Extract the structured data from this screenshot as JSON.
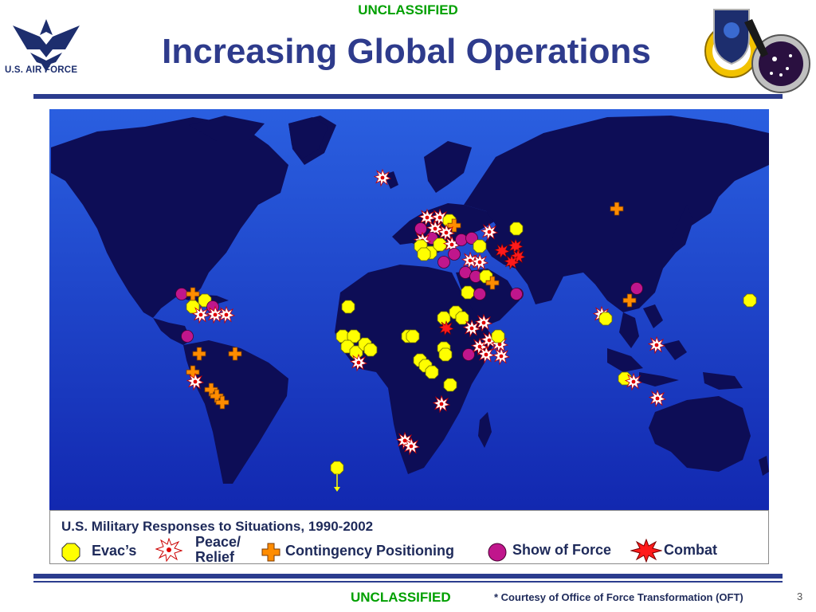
{
  "header": {
    "classification": "UNCLASSIFIED",
    "title": "Increasing Global Operations",
    "logo_text": "U.S. AIR FORCE"
  },
  "map": {
    "ocean_color": "#1a3fc4",
    "land_color": "#0d0d56",
    "legend": {
      "title": "U.S. Military Responses to Situations, 1990-2002",
      "items": [
        {
          "label": "Evac’s",
          "icon": "yellow-octagon-icon",
          "color": "#ffff00"
        },
        {
          "label_line1": "Peace/",
          "label_line2": "Relief",
          "icon": "starburst-icon",
          "color": "#ffffff"
        },
        {
          "label": "Contingency Positioning",
          "icon": "orange-cross-icon",
          "color": "#ff8c00"
        },
        {
          "label": "Show of Force",
          "icon": "magenta-circle-icon",
          "color": "#c0168c"
        },
        {
          "label": "Combat",
          "icon": "red-explosion-icon",
          "color": "#ff1a1a"
        }
      ]
    }
  },
  "footer": {
    "classification": "UNCLASSIFIED",
    "courtesy": "* Courtesy of Office of Force Transformation (OFT)",
    "page_number": "3"
  }
}
